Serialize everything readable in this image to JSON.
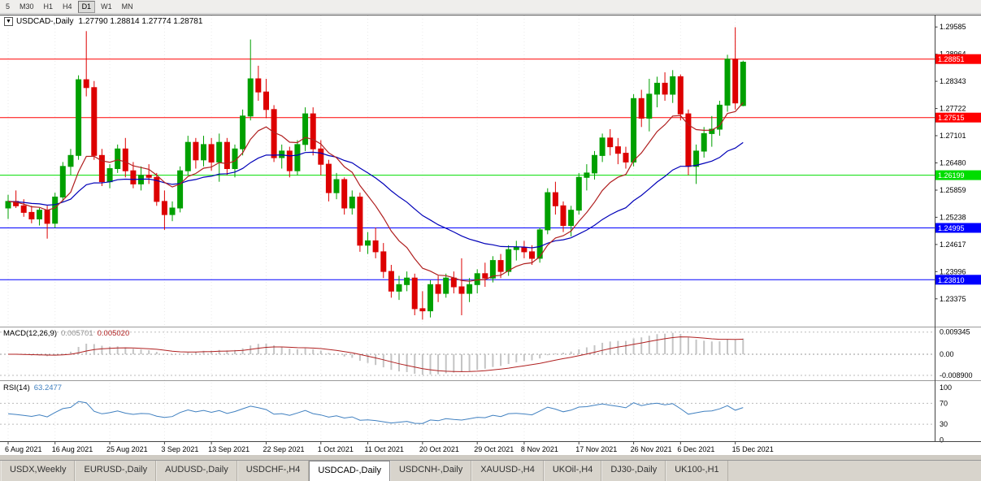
{
  "toolbar": {
    "buttons": [
      {
        "label": "5",
        "active": false
      },
      {
        "label": "M30",
        "active": false
      },
      {
        "label": "H1",
        "active": false
      },
      {
        "label": "H4",
        "active": false
      },
      {
        "label": "D1",
        "active": true
      },
      {
        "label": "W1",
        "active": false
      },
      {
        "label": "MN",
        "active": false
      }
    ]
  },
  "chart": {
    "collapse_icon": "▼",
    "symbol_title": "USDCAD-,Daily",
    "ohlc_text": "1.27790 1.28814 1.27774 1.28781",
    "price_axis": [
      "1.29585",
      "1.28964",
      "1.28343",
      "1.27722",
      "1.27101",
      "1.26480",
      "1.25859",
      "1.25238",
      "1.24617",
      "1.23996",
      "1.23375"
    ]
  },
  "macd": {
    "label": "MACD(12,26,9)",
    "value_main": "0.005701",
    "value_signal": "0.005020",
    "axis": [
      {
        "label": "0.009345",
        "value": 0.009345
      },
      {
        "label": "0.00",
        "value": 0
      },
      {
        "label": "-0.008900",
        "value": -0.0089
      }
    ]
  },
  "rsi": {
    "label": "RSI(14)",
    "value": "63.2477",
    "axis": [
      {
        "label": "100",
        "value": 100
      },
      {
        "label": "70",
        "value": 70
      },
      {
        "label": "30",
        "value": 30
      },
      {
        "label": "0",
        "value": 0
      }
    ],
    "levels": [
      70,
      30
    ]
  },
  "tabs": [
    {
      "label": "USDX,Weekly",
      "active": false
    },
    {
      "label": "EURUSD-,Daily",
      "active": false
    },
    {
      "label": "AUDUSD-,Daily",
      "active": false
    },
    {
      "label": "USDCHF-,H4",
      "active": false
    },
    {
      "label": "USDCAD-,Daily",
      "active": true
    },
    {
      "label": "USDCNH-,Daily",
      "active": false
    },
    {
      "label": "XAUUSD-,H4",
      "active": false
    },
    {
      "label": "UKOil-,H4",
      "active": false
    },
    {
      "label": "DJ30-,Daily",
      "active": false
    },
    {
      "label": "UK100-,H1",
      "active": false
    }
  ],
  "colors": {
    "bull": "#00A000",
    "bear": "#DD0000",
    "ma_red": "#B02020",
    "ma_blue": "#0000B8",
    "macd_hist": "#C4C4C4",
    "macd_signal": "#B02020",
    "rsi_line": "#4080C0",
    "grid": "#EAEAEA",
    "level_dash": "#BBBBBB"
  },
  "chart_data": {
    "type": "candlestick",
    "symbol_timeframe": "USDCAD-,Daily",
    "y_range": [
      1.2274,
      1.2983
    ],
    "hlines": [
      {
        "value": 1.28851,
        "label": "1.28851",
        "color": "#FF0000"
      },
      {
        "value": 1.27515,
        "label": "1.27515",
        "color": "#FF0000"
      },
      {
        "value": 1.26199,
        "label": "1.26199",
        "color": "#00DD00"
      },
      {
        "value": 1.24995,
        "label": "1.24995",
        "color": "#0000FF"
      },
      {
        "value": 1.2381,
        "label": "1.23810",
        "color": "#0000FF"
      }
    ],
    "date_ticks": [
      {
        "i": 0,
        "label": "6 Aug 2021"
      },
      {
        "i": 6,
        "label": "16 Aug 2021"
      },
      {
        "i": 13,
        "label": "25 Aug 2021"
      },
      {
        "i": 20,
        "label": "3 Sep 2021"
      },
      {
        "i": 26,
        "label": "13 Sep 2021"
      },
      {
        "i": 33,
        "label": "22 Sep 2021"
      },
      {
        "i": 40,
        "label": "1 Oct 2021"
      },
      {
        "i": 46,
        "label": "11 Oct 2021"
      },
      {
        "i": 53,
        "label": "20 Oct 2021"
      },
      {
        "i": 60,
        "label": "29 Oct 2021"
      },
      {
        "i": 66,
        "label": "8 Nov 2021"
      },
      {
        "i": 73,
        "label": "17 Nov 2021"
      },
      {
        "i": 80,
        "label": "26 Nov 2021"
      },
      {
        "i": 86,
        "label": "6 Dec 2021"
      },
      {
        "i": 93,
        "label": "15 Dec 2021"
      }
    ],
    "candles": [
      [
        1.2545,
        1.2575,
        1.252,
        1.256
      ],
      [
        1.256,
        1.2585,
        1.2545,
        1.255
      ],
      [
        1.255,
        1.2565,
        1.2525,
        1.2535
      ],
      [
        1.2535,
        1.255,
        1.251,
        1.252
      ],
      [
        1.252,
        1.2545,
        1.2505,
        1.254
      ],
      [
        1.254,
        1.255,
        1.2475,
        1.251
      ],
      [
        1.251,
        1.258,
        1.25,
        1.257
      ],
      [
        1.257,
        1.265,
        1.256,
        1.264
      ],
      [
        1.264,
        1.268,
        1.262,
        1.2665
      ],
      [
        1.2665,
        1.2848,
        1.2655,
        1.2838
      ],
      [
        1.2838,
        1.2949,
        1.28,
        1.282
      ],
      [
        1.282,
        1.2835,
        1.2655,
        1.2665
      ],
      [
        1.2665,
        1.268,
        1.2595,
        1.2605
      ],
      [
        1.2605,
        1.2645,
        1.259,
        1.2635
      ],
      [
        1.2635,
        1.269,
        1.2625,
        1.268
      ],
      [
        1.268,
        1.2705,
        1.2615,
        1.263
      ],
      [
        1.263,
        1.265,
        1.259,
        1.26
      ],
      [
        1.26,
        1.264,
        1.2585,
        1.262
      ],
      [
        1.262,
        1.2645,
        1.26,
        1.2615
      ],
      [
        1.2615,
        1.2625,
        1.255,
        1.256
      ],
      [
        1.256,
        1.2585,
        1.2495,
        1.253
      ],
      [
        1.253,
        1.256,
        1.2515,
        1.2545
      ],
      [
        1.2545,
        1.264,
        1.2535,
        1.263
      ],
      [
        1.263,
        1.271,
        1.262,
        1.2695
      ],
      [
        1.2695,
        1.2705,
        1.2635,
        1.2655
      ],
      [
        1.2655,
        1.271,
        1.264,
        1.269
      ],
      [
        1.269,
        1.2705,
        1.263,
        1.265
      ],
      [
        1.265,
        1.2715,
        1.2605,
        1.2695
      ],
      [
        1.2695,
        1.2705,
        1.262,
        1.2635
      ],
      [
        1.2635,
        1.269,
        1.2615,
        1.268
      ],
      [
        1.268,
        1.277,
        1.2665,
        1.2755
      ],
      [
        1.2755,
        1.293,
        1.2745,
        1.284
      ],
      [
        1.284,
        1.287,
        1.279,
        1.281
      ],
      [
        1.281,
        1.284,
        1.275,
        1.277
      ],
      [
        1.277,
        1.278,
        1.265,
        1.266
      ],
      [
        1.266,
        1.269,
        1.2635,
        1.2675
      ],
      [
        1.2675,
        1.2685,
        1.2615,
        1.263
      ],
      [
        1.263,
        1.27,
        1.262,
        1.269
      ],
      [
        1.269,
        1.2775,
        1.2675,
        1.276
      ],
      [
        1.276,
        1.2775,
        1.2665,
        1.268
      ],
      [
        1.268,
        1.27,
        1.262,
        1.2645
      ],
      [
        1.2645,
        1.2655,
        1.256,
        1.258
      ],
      [
        1.258,
        1.2625,
        1.2565,
        1.261
      ],
      [
        1.261,
        1.2615,
        1.253,
        1.2545
      ],
      [
        1.2545,
        1.2585,
        1.253,
        1.257
      ],
      [
        1.257,
        1.258,
        1.2445,
        1.246
      ],
      [
        1.246,
        1.249,
        1.244,
        1.247
      ],
      [
        1.247,
        1.25,
        1.243,
        1.2445
      ],
      [
        1.2445,
        1.2465,
        1.2385,
        1.24
      ],
      [
        1.24,
        1.2415,
        1.234,
        1.2355
      ],
      [
        1.2355,
        1.239,
        1.2335,
        1.237
      ],
      [
        1.237,
        1.24,
        1.2355,
        1.2385
      ],
      [
        1.2385,
        1.2395,
        1.23,
        1.2315
      ],
      [
        1.2315,
        1.2355,
        1.229,
        1.231
      ],
      [
        1.231,
        1.238,
        1.2295,
        1.237
      ],
      [
        1.237,
        1.239,
        1.233,
        1.235
      ],
      [
        1.235,
        1.2395,
        1.234,
        1.2385
      ],
      [
        1.2385,
        1.24,
        1.235,
        1.2365
      ],
      [
        1.2365,
        1.243,
        1.23,
        1.235
      ],
      [
        1.235,
        1.2385,
        1.233,
        1.237
      ],
      [
        1.237,
        1.2405,
        1.235,
        1.2395
      ],
      [
        1.2395,
        1.242,
        1.2365,
        1.2385
      ],
      [
        1.2385,
        1.2435,
        1.2375,
        1.2425
      ],
      [
        1.2425,
        1.244,
        1.2385,
        1.24
      ],
      [
        1.24,
        1.246,
        1.239,
        1.245
      ],
      [
        1.245,
        1.247,
        1.2425,
        1.2455
      ],
      [
        1.2455,
        1.247,
        1.243,
        1.2445
      ],
      [
        1.2445,
        1.246,
        1.2415,
        1.243
      ],
      [
        1.243,
        1.25,
        1.242,
        1.2495
      ],
      [
        1.2495,
        1.259,
        1.2485,
        1.258
      ],
      [
        1.258,
        1.2605,
        1.253,
        1.255
      ],
      [
        1.255,
        1.256,
        1.249,
        1.2505
      ],
      [
        1.2505,
        1.255,
        1.248,
        1.254
      ],
      [
        1.254,
        1.2625,
        1.253,
        1.2615
      ],
      [
        1.2615,
        1.2645,
        1.2585,
        1.2625
      ],
      [
        1.2625,
        1.2675,
        1.261,
        1.2665
      ],
      [
        1.2665,
        1.2715,
        1.265,
        1.2705
      ],
      [
        1.2705,
        1.2725,
        1.2665,
        1.2685
      ],
      [
        1.2685,
        1.2705,
        1.2645,
        1.267
      ],
      [
        1.267,
        1.2685,
        1.2635,
        1.265
      ],
      [
        1.265,
        1.2805,
        1.264,
        1.2795
      ],
      [
        1.2795,
        1.2815,
        1.273,
        1.275
      ],
      [
        1.275,
        1.284,
        1.272,
        1.2805
      ],
      [
        1.2805,
        1.2845,
        1.2775,
        1.283
      ],
      [
        1.283,
        1.2855,
        1.279,
        1.2805
      ],
      [
        1.2805,
        1.286,
        1.2785,
        1.2845
      ],
      [
        1.2845,
        1.285,
        1.2745,
        1.276
      ],
      [
        1.276,
        1.277,
        1.262,
        1.264
      ],
      [
        1.264,
        1.269,
        1.26,
        1.2675
      ],
      [
        1.2675,
        1.273,
        1.266,
        1.2715
      ],
      [
        1.2715,
        1.2755,
        1.2685,
        1.2725
      ],
      [
        1.2725,
        1.279,
        1.271,
        1.278
      ],
      [
        1.278,
        1.2895,
        1.2765,
        1.2885
      ],
      [
        1.2885,
        1.2958,
        1.277,
        1.2785
      ],
      [
        1.2779,
        1.28814,
        1.27774,
        1.28781
      ]
    ]
  }
}
